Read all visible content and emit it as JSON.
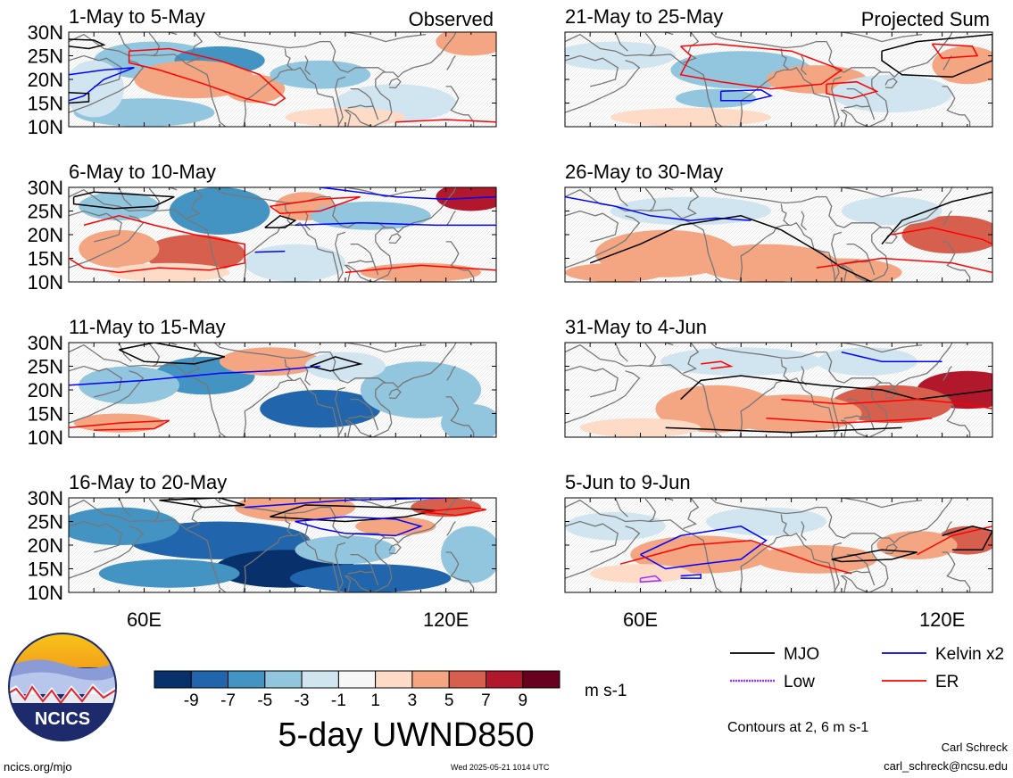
{
  "figure": {
    "title": "5-day UWND850",
    "units": "m s-1",
    "contour_note": "Contours at 2, 6 m s-1",
    "left_column_tag": "Observed",
    "right_column_tag": "Projected Sum",
    "footer_url": "ncics.org/mjo",
    "timestamp": "Wed 2025-05-21 1014 UTC",
    "author": "Carl Schreck",
    "email": "carl_schreck@ncsu.edu",
    "logo_text": "NCICS"
  },
  "colors": {
    "colorbar": [
      "#08306b",
      "#2166ac",
      "#4393c3",
      "#92c5de",
      "#d1e5f0",
      "#ffffff",
      "#f7f7f7",
      "#fddbc7",
      "#f4a582",
      "#d6604d",
      "#b2182b",
      "#67001f"
    ],
    "mjo": "#000000",
    "kelvin": "#0000ff",
    "low": "#9933ff",
    "er": "#ff0000",
    "map_lines": "#777777"
  },
  "chart_data": {
    "type": "heatmap",
    "variable": "UWND850 5-day mean anomaly",
    "units": "m s-1",
    "x_ticks": [
      "60E",
      "120E"
    ],
    "x_tick_values": [
      60,
      120
    ],
    "y_ticks": [
      "30N",
      "25N",
      "20N",
      "15N",
      "10N"
    ],
    "y_tick_values": [
      30,
      25,
      20,
      15,
      10
    ],
    "lon_range": [
      45,
      130
    ],
    "lat_range": [
      10,
      30
    ],
    "colorbar_labels": [
      "-9",
      "-7",
      "-5",
      "-3",
      "-1",
      "1",
      "3",
      "5",
      "7",
      "9"
    ],
    "legend": [
      {
        "name": "MJO",
        "color": "#000000"
      },
      {
        "name": "Kelvin x2",
        "color": "#0000ff"
      },
      {
        "name": "Low",
        "color": "#9933ff"
      },
      {
        "name": "ER",
        "color": "#ff0000"
      }
    ],
    "panels": [
      {
        "period": "1-May to 5-May",
        "column": "left",
        "row": 0,
        "blobs": [
          {
            "lon": 62,
            "lat": 24,
            "rx": 12,
            "ry": 4,
            "v": -3
          },
          {
            "lon": 75,
            "lat": 24,
            "rx": 9,
            "ry": 3,
            "v": -5
          },
          {
            "lon": 70,
            "lat": 20,
            "rx": 12,
            "ry": 4,
            "v": 3
          },
          {
            "lon": 82,
            "lat": 18,
            "rx": 6,
            "ry": 3,
            "v": 3
          },
          {
            "lon": 60,
            "lat": 13,
            "rx": 14,
            "ry": 3,
            "v": -3
          },
          {
            "lon": 95,
            "lat": 21,
            "rx": 10,
            "ry": 3,
            "v": -3
          },
          {
            "lon": 110,
            "lat": 15,
            "rx": 12,
            "ry": 4,
            "v": -1
          },
          {
            "lon": 100,
            "lat": 12,
            "rx": 12,
            "ry": 2,
            "v": 1
          },
          {
            "lon": 125,
            "lat": 28,
            "rx": 7,
            "ry": 3,
            "v": 3
          },
          {
            "lon": 50,
            "lat": 18,
            "rx": 6,
            "ry": 6,
            "v": -1
          }
        ]
      },
      {
        "period": "6-May to 10-May",
        "column": "left",
        "row": 1,
        "blobs": [
          {
            "lon": 75,
            "lat": 25,
            "rx": 10,
            "ry": 5,
            "v": -5
          },
          {
            "lon": 55,
            "lat": 26,
            "rx": 8,
            "ry": 3,
            "v": -3
          },
          {
            "lon": 92,
            "lat": 26,
            "rx": 6,
            "ry": 3,
            "v": 3
          },
          {
            "lon": 125,
            "lat": 28,
            "rx": 7,
            "ry": 3,
            "v": 7
          },
          {
            "lon": 70,
            "lat": 16,
            "rx": 10,
            "ry": 4,
            "v": 5
          },
          {
            "lon": 55,
            "lat": 17,
            "rx": 8,
            "ry": 4,
            "v": 3
          },
          {
            "lon": 105,
            "lat": 24,
            "rx": 12,
            "ry": 3,
            "v": -3
          },
          {
            "lon": 90,
            "lat": 14,
            "rx": 10,
            "ry": 4,
            "v": -1
          },
          {
            "lon": 115,
            "lat": 12,
            "rx": 12,
            "ry": 2,
            "v": 3
          },
          {
            "lon": 65,
            "lat": 12,
            "rx": 12,
            "ry": 2,
            "v": 1
          }
        ]
      },
      {
        "period": "11-May to 15-May",
        "column": "left",
        "row": 2,
        "blobs": [
          {
            "lon": 72,
            "lat": 23,
            "rx": 10,
            "ry": 4,
            "v": -5
          },
          {
            "lon": 95,
            "lat": 16,
            "rx": 12,
            "ry": 4,
            "v": -7
          },
          {
            "lon": 57,
            "lat": 21,
            "rx": 10,
            "ry": 4,
            "v": -3
          },
          {
            "lon": 115,
            "lat": 20,
            "rx": 12,
            "ry": 6,
            "v": -3
          },
          {
            "lon": 85,
            "lat": 26,
            "rx": 10,
            "ry": 3,
            "v": 3
          },
          {
            "lon": 55,
            "lat": 13,
            "rx": 9,
            "ry": 2,
            "v": 3
          },
          {
            "lon": 100,
            "lat": 25,
            "rx": 8,
            "ry": 3,
            "v": -1
          },
          {
            "lon": 125,
            "lat": 13,
            "rx": 6,
            "ry": 4,
            "v": -3
          }
        ]
      },
      {
        "period": "16-May to 20-May",
        "column": "left",
        "row": 3,
        "blobs": [
          {
            "lon": 75,
            "lat": 21,
            "rx": 18,
            "ry": 4,
            "v": -7
          },
          {
            "lon": 88,
            "lat": 15,
            "rx": 14,
            "ry": 4,
            "v": -9
          },
          {
            "lon": 55,
            "lat": 24,
            "rx": 12,
            "ry": 4,
            "v": -5
          },
          {
            "lon": 105,
            "lat": 13,
            "rx": 16,
            "ry": 3,
            "v": -7
          },
          {
            "lon": 100,
            "lat": 19,
            "rx": 10,
            "ry": 3,
            "v": -3
          },
          {
            "lon": 90,
            "lat": 28,
            "rx": 12,
            "ry": 3,
            "v": 3
          },
          {
            "lon": 120,
            "lat": 28,
            "rx": 7,
            "ry": 2,
            "v": 5
          },
          {
            "lon": 110,
            "lat": 24,
            "rx": 8,
            "ry": 2,
            "v": 3
          },
          {
            "lon": 65,
            "lat": 14,
            "rx": 14,
            "ry": 3,
            "v": -5
          },
          {
            "lon": 125,
            "lat": 18,
            "rx": 6,
            "ry": 6,
            "v": -3
          }
        ]
      },
      {
        "period": "21-May to 25-May",
        "column": "right",
        "row": 0,
        "blobs": [
          {
            "lon": 80,
            "lat": 22,
            "rx": 14,
            "ry": 4,
            "v": -3
          },
          {
            "lon": 55,
            "lat": 25,
            "rx": 12,
            "ry": 3,
            "v": -1
          },
          {
            "lon": 95,
            "lat": 20,
            "rx": 10,
            "ry": 3,
            "v": 3
          },
          {
            "lon": 125,
            "lat": 23,
            "rx": 7,
            "ry": 4,
            "v": 3
          },
          {
            "lon": 70,
            "lat": 12,
            "rx": 16,
            "ry": 2,
            "v": 1
          },
          {
            "lon": 110,
            "lat": 17,
            "rx": 12,
            "ry": 4,
            "v": -1
          },
          {
            "lon": 75,
            "lat": 16,
            "rx": 8,
            "ry": 2,
            "v": -3
          }
        ]
      },
      {
        "period": "26-May to 30-May",
        "column": "right",
        "row": 1,
        "blobs": [
          {
            "lon": 65,
            "lat": 16,
            "rx": 14,
            "ry": 5,
            "v": 3
          },
          {
            "lon": 85,
            "lat": 14,
            "rx": 14,
            "ry": 4,
            "v": 3
          },
          {
            "lon": 122,
            "lat": 20,
            "rx": 10,
            "ry": 4,
            "v": 5
          },
          {
            "lon": 100,
            "lat": 12,
            "rx": 12,
            "ry": 3,
            "v": 3
          },
          {
            "lon": 70,
            "lat": 25,
            "rx": 16,
            "ry": 3,
            "v": -1
          },
          {
            "lon": 110,
            "lat": 25,
            "rx": 10,
            "ry": 3,
            "v": -1
          },
          {
            "lon": 55,
            "lat": 12,
            "rx": 10,
            "ry": 2,
            "v": 3
          }
        ]
      },
      {
        "period": "31-May to 4-Jun",
        "column": "right",
        "row": 2,
        "blobs": [
          {
            "lon": 125,
            "lat": 20,
            "rx": 10,
            "ry": 4,
            "v": 7
          },
          {
            "lon": 110,
            "lat": 17,
            "rx": 12,
            "ry": 4,
            "v": 5
          },
          {
            "lon": 90,
            "lat": 15,
            "rx": 14,
            "ry": 4,
            "v": 3
          },
          {
            "lon": 75,
            "lat": 16,
            "rx": 12,
            "ry": 5,
            "v": 3
          },
          {
            "lon": 60,
            "lat": 12,
            "rx": 12,
            "ry": 2,
            "v": 1
          },
          {
            "lon": 80,
            "lat": 26,
            "rx": 16,
            "ry": 3,
            "v": -1
          },
          {
            "lon": 105,
            "lat": 26,
            "rx": 10,
            "ry": 3,
            "v": -1
          }
        ]
      },
      {
        "period": "5-Jun to 9-Jun",
        "column": "right",
        "row": 3,
        "blobs": [
          {
            "lon": 72,
            "lat": 18,
            "rx": 14,
            "ry": 4,
            "v": 3
          },
          {
            "lon": 95,
            "lat": 17,
            "rx": 12,
            "ry": 3,
            "v": 3
          },
          {
            "lon": 125,
            "lat": 21,
            "rx": 6,
            "ry": 3,
            "v": 5
          },
          {
            "lon": 115,
            "lat": 20,
            "rx": 8,
            "ry": 3,
            "v": 3
          },
          {
            "lon": 55,
            "lat": 24,
            "rx": 10,
            "ry": 3,
            "v": -1
          },
          {
            "lon": 85,
            "lat": 25,
            "rx": 12,
            "ry": 3,
            "v": -1
          },
          {
            "lon": 60,
            "lat": 14,
            "rx": 10,
            "ry": 2,
            "v": 1
          }
        ]
      }
    ]
  }
}
